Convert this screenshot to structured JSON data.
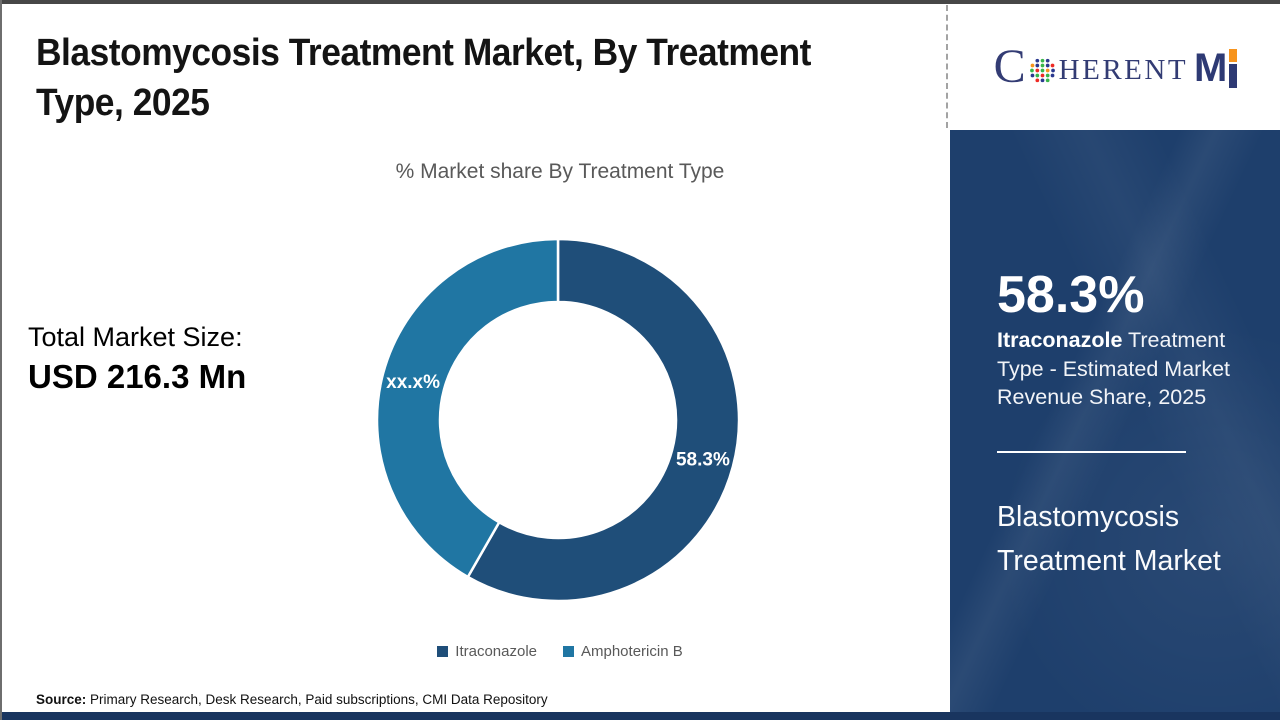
{
  "page": {
    "title_lines": [
      "Blastomycosis Treatment Market, By Treatment",
      "Type, 2025"
    ]
  },
  "logo": {
    "name": "COHERENT MI",
    "part_c": "C",
    "part_herent": "HERENT",
    "part_m": "M"
  },
  "main": {
    "subtitle": "% Market share By Treatment Type",
    "total_market_label": "Total Market Size:",
    "total_market_value": "USD 216.3 Mn"
  },
  "chart_data": {
    "type": "pie",
    "donut": true,
    "title": "% Market share By Treatment Type",
    "categories": [
      "Itraconazole",
      "Amphotericin B"
    ],
    "values": [
      58.3,
      41.7
    ],
    "slice_labels": [
      "58.3%",
      "xx.x%"
    ],
    "colors": [
      "#1f4e79",
      "#2076a3"
    ],
    "start_angle_deg": 0,
    "legend_position": "bottom"
  },
  "sidebar": {
    "stat_value": "58.3%",
    "stat_desc_highlight": "Itraconazole",
    "stat_desc_rest": " Treatment Type - Estimated Market Revenue Share, 2025",
    "market_name": "Blastomycosis Treatment Market"
  },
  "footer": {
    "source_label": "Source:",
    "source_text": " Primary Research, Desk Research, Paid subscriptions, CMI Data Repository"
  },
  "colors": {
    "sidebar_bg": "#1e3f6c",
    "accent_dark": "#1f4e79",
    "accent_teal": "#2076a3",
    "bottom_bar": "#19355f",
    "text_gray": "#595959"
  }
}
